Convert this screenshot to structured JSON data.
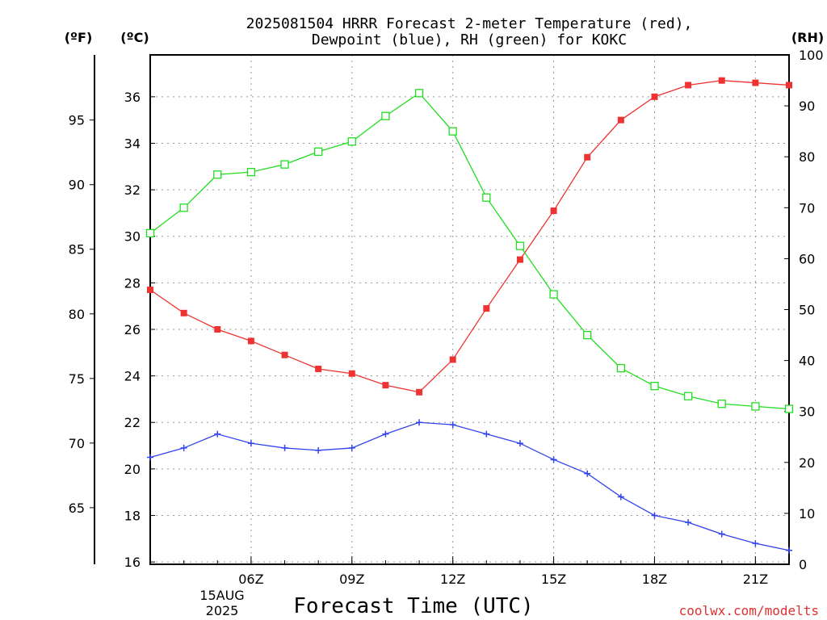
{
  "chart_data": {
    "type": "line",
    "title_line1": "2025081504 HRRR Forecast 2-meter Temperature (red),",
    "title_line2": "Dewpoint (blue), RH (green) for KOKC",
    "xlabel": "Forecast Time (UTC)",
    "watermark": "coolwx.com/modelts",
    "left_outer_label": "(ºF)",
    "left_inner_label": "(ºC)",
    "right_label": "(RH)",
    "date_label_day": "15AUG",
    "date_label_year": "2025",
    "x_hours": [
      3,
      4,
      5,
      6,
      7,
      8,
      9,
      10,
      11,
      12,
      13,
      14,
      15,
      16,
      17,
      18,
      19,
      20,
      21,
      22
    ],
    "x_range": [
      3,
      22
    ],
    "x_ticks": [
      {
        "hour": 6,
        "label": "06Z"
      },
      {
        "hour": 9,
        "label": "09Z"
      },
      {
        "hour": 12,
        "label": "12Z"
      },
      {
        "hour": 15,
        "label": "15Z"
      },
      {
        "hour": 18,
        "label": "18Z"
      },
      {
        "hour": 21,
        "label": "21Z"
      }
    ],
    "celsius_axis": {
      "range": [
        15.9,
        37.8
      ],
      "ticks": [
        "16",
        "18",
        "20",
        "22",
        "24",
        "26",
        "28",
        "30",
        "32",
        "34",
        "36"
      ]
    },
    "fahrenheit_axis": {
      "ticks": [
        "65",
        "70",
        "75",
        "80",
        "85",
        "90",
        "95"
      ]
    },
    "rh_axis": {
      "range": [
        0,
        100
      ],
      "ticks": [
        "0",
        "10",
        "20",
        "30",
        "40",
        "50",
        "60",
        "70",
        "80",
        "90",
        "100"
      ]
    },
    "grid": true,
    "series": [
      {
        "name": "Temperature",
        "axis": "celsius",
        "color": "#ee3333",
        "marker": "filled-square",
        "values": [
          27.7,
          26.7,
          26.0,
          25.5,
          24.9,
          24.3,
          24.1,
          23.6,
          23.3,
          24.7,
          26.9,
          29.0,
          31.1,
          33.4,
          35.0,
          36.0,
          36.5,
          36.7,
          36.6,
          36.5
        ]
      },
      {
        "name": "Dewpoint",
        "axis": "celsius",
        "color": "#3344ee",
        "marker": "plus",
        "values": [
          20.5,
          20.9,
          21.5,
          21.1,
          20.9,
          20.8,
          20.9,
          21.5,
          22.0,
          21.9,
          21.5,
          21.1,
          20.4,
          19.8,
          18.8,
          18.0,
          17.7,
          17.2,
          16.8,
          16.5
        ]
      },
      {
        "name": "RH",
        "axis": "rh",
        "color": "#22dd22",
        "marker": "open-square",
        "values": [
          65,
          70,
          76.5,
          77,
          78.5,
          81,
          83,
          88,
          92.5,
          85,
          72,
          62.5,
          53,
          45,
          38.5,
          35,
          33,
          31.5,
          31,
          30.5
        ]
      }
    ]
  }
}
